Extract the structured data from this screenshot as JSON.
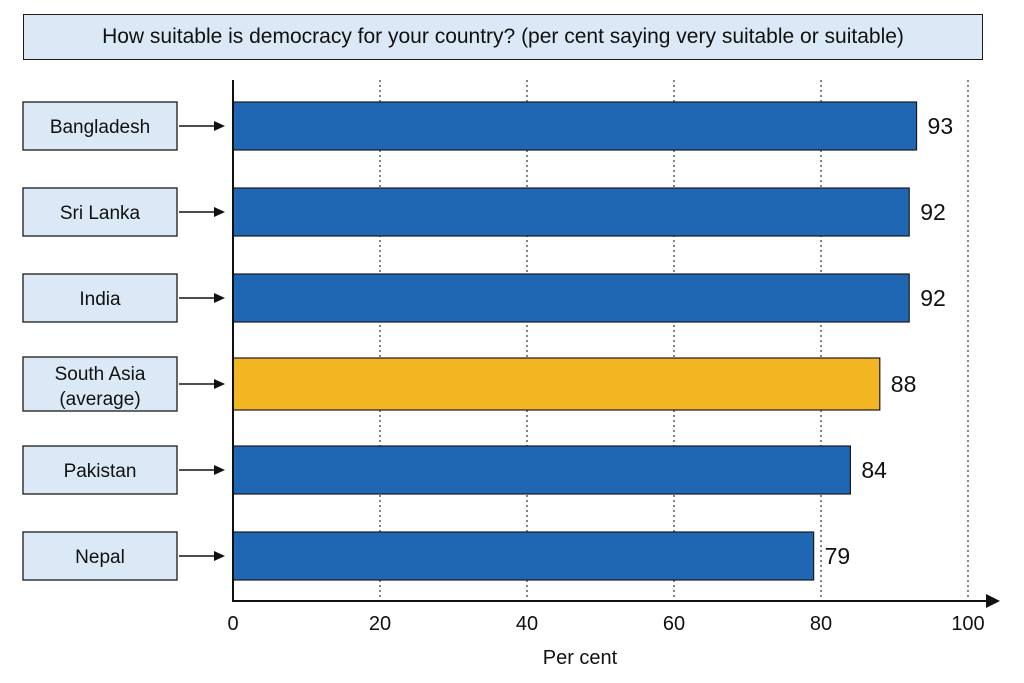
{
  "chart_data": {
    "type": "bar",
    "orientation": "horizontal",
    "title": "How suitable is democracy for your country? (per cent saying very suitable or suitable)",
    "categories": [
      "Bangladesh",
      "Sri Lanka",
      "India",
      "South Asia (average)",
      "Pakistan",
      "Nepal"
    ],
    "values": [
      93,
      92,
      92,
      88,
      84,
      79
    ],
    "highlight": "South Asia (average)",
    "xlabel": "Per cent",
    "ylabel": "",
    "xlim": [
      0,
      100
    ],
    "xticks": [
      0,
      20,
      40,
      60,
      80,
      100
    ],
    "grid": "vertical dotted",
    "colors": {
      "bar": "#1f66b3",
      "highlight_bar": "#f3b623",
      "label_box": "#dbe8f5",
      "title_box": "#dbe8f5"
    }
  }
}
